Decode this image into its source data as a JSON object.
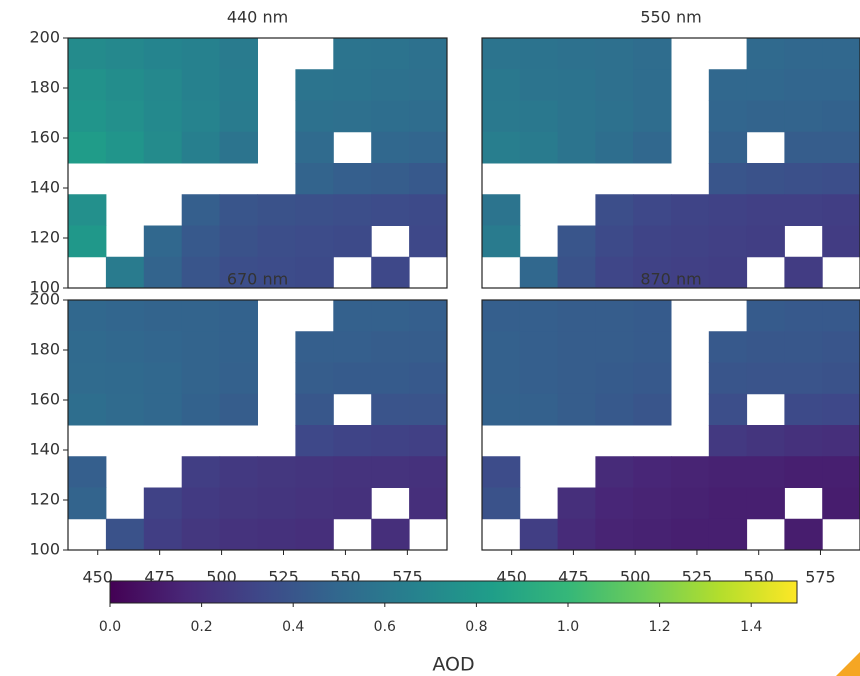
{
  "chart_data": [
    {
      "type": "heatmap",
      "title": "440 nm",
      "xlim": [
        438,
        591
      ],
      "ylim": [
        100,
        200
      ],
      "yticks": [
        100,
        120,
        140,
        160,
        180,
        200
      ],
      "colormap": "viridis",
      "z": [
        [
          0.72,
          0.7,
          0.68,
          0.66,
          0.62,
          null,
          null,
          0.58,
          0.57,
          0.56
        ],
        [
          0.76,
          0.73,
          0.7,
          0.66,
          0.63,
          null,
          0.58,
          0.57,
          0.56,
          0.55
        ],
        [
          0.78,
          0.75,
          0.71,
          0.67,
          0.62,
          null,
          0.56,
          0.55,
          0.54,
          0.53
        ],
        [
          0.82,
          0.78,
          0.72,
          0.65,
          0.58,
          null,
          0.52,
          null,
          0.5,
          0.49
        ],
        [
          null,
          null,
          null,
          null,
          null,
          null,
          0.48,
          0.45,
          0.44,
          0.42
        ],
        [
          0.75,
          null,
          null,
          0.45,
          0.4,
          0.38,
          0.37,
          0.36,
          0.35,
          0.34
        ],
        [
          0.8,
          null,
          0.5,
          0.42,
          0.38,
          0.36,
          0.35,
          0.34,
          null,
          0.33
        ],
        [
          null,
          0.62,
          0.48,
          0.4,
          0.36,
          0.35,
          0.34,
          null,
          0.33,
          null
        ]
      ]
    },
    {
      "type": "heatmap",
      "title": "550 nm",
      "xlim": [
        438,
        591
      ],
      "ylim": [
        100,
        200
      ],
      "colormap": "viridis",
      "z": [
        [
          0.58,
          0.57,
          0.56,
          0.55,
          0.53,
          null,
          null,
          0.51,
          0.5,
          0.5
        ],
        [
          0.6,
          0.58,
          0.57,
          0.55,
          0.53,
          null,
          0.5,
          0.5,
          0.49,
          0.49
        ],
        [
          0.61,
          0.6,
          0.58,
          0.56,
          0.53,
          null,
          0.49,
          0.48,
          0.48,
          0.47
        ],
        [
          0.64,
          0.62,
          0.58,
          0.54,
          0.5,
          null,
          0.46,
          null,
          0.44,
          0.44
        ],
        [
          null,
          null,
          null,
          null,
          null,
          null,
          0.4,
          0.38,
          0.37,
          0.36
        ],
        [
          0.58,
          null,
          null,
          0.36,
          0.33,
          0.31,
          0.3,
          0.29,
          0.29,
          0.28
        ],
        [
          0.62,
          null,
          0.4,
          0.34,
          0.31,
          0.3,
          0.29,
          0.28,
          null,
          0.27
        ],
        [
          null,
          0.5,
          0.38,
          0.32,
          0.3,
          0.29,
          0.28,
          null,
          0.27,
          null
        ]
      ]
    },
    {
      "type": "heatmap",
      "title": "670 nm",
      "xlim": [
        438,
        591
      ],
      "ylim": [
        100,
        200
      ],
      "xticks": [
        450,
        475,
        500,
        525,
        550,
        575
      ],
      "yticks": [
        100,
        120,
        140,
        160,
        180,
        200
      ],
      "colormap": "viridis",
      "z": [
        [
          0.5,
          0.49,
          0.48,
          0.48,
          0.47,
          null,
          null,
          0.46,
          0.46,
          0.45
        ],
        [
          0.51,
          0.5,
          0.49,
          0.48,
          0.47,
          null,
          0.45,
          0.45,
          0.44,
          0.44
        ],
        [
          0.52,
          0.51,
          0.5,
          0.48,
          0.46,
          null,
          0.44,
          0.43,
          0.43,
          0.42
        ],
        [
          0.54,
          0.52,
          0.5,
          0.47,
          0.44,
          null,
          0.41,
          null,
          0.39,
          0.39
        ],
        [
          null,
          null,
          null,
          null,
          null,
          null,
          0.33,
          0.31,
          0.3,
          0.29
        ],
        [
          0.45,
          null,
          null,
          0.28,
          0.25,
          0.24,
          0.23,
          0.22,
          0.22,
          0.21
        ],
        [
          0.48,
          null,
          0.3,
          0.26,
          0.24,
          0.23,
          0.22,
          0.21,
          null,
          0.2
        ],
        [
          null,
          0.38,
          0.28,
          0.24,
          0.22,
          0.21,
          0.2,
          null,
          0.2,
          null
        ]
      ]
    },
    {
      "type": "heatmap",
      "title": "870 nm",
      "xlim": [
        438,
        591
      ],
      "ylim": [
        100,
        200
      ],
      "xticks": [
        450,
        475,
        500,
        525,
        550,
        575
      ],
      "colormap": "viridis",
      "z": [
        [
          0.45,
          0.45,
          0.44,
          0.44,
          0.43,
          null,
          null,
          0.43,
          0.42,
          0.42
        ],
        [
          0.46,
          0.45,
          0.44,
          0.44,
          0.43,
          null,
          0.42,
          0.41,
          0.41,
          0.4
        ],
        [
          0.46,
          0.45,
          0.44,
          0.43,
          0.42,
          null,
          0.4,
          0.39,
          0.39,
          0.38
        ],
        [
          0.47,
          0.46,
          0.44,
          0.42,
          0.4,
          null,
          0.36,
          null,
          0.34,
          0.33
        ],
        [
          null,
          null,
          null,
          null,
          null,
          null,
          0.25,
          0.23,
          0.21,
          0.2
        ],
        [
          0.35,
          null,
          null,
          0.18,
          0.16,
          0.15,
          0.14,
          0.14,
          0.13,
          0.13
        ],
        [
          0.38,
          null,
          0.2,
          0.16,
          0.15,
          0.14,
          0.13,
          0.13,
          null,
          0.12
        ],
        [
          null,
          0.28,
          0.18,
          0.15,
          0.14,
          0.13,
          0.13,
          null,
          0.12,
          null
        ]
      ]
    },
    {
      "type": "colorbar",
      "label": "AOD",
      "clim": [
        0,
        1.5
      ],
      "colormap": "viridis",
      "ticks": [
        {
          "value": 0,
          "label": "0.0"
        },
        0.2,
        0.4,
        0.6,
        0.8,
        {
          "value": 1,
          "label": "1.0"
        },
        1.2,
        1.4
      ]
    }
  ]
}
